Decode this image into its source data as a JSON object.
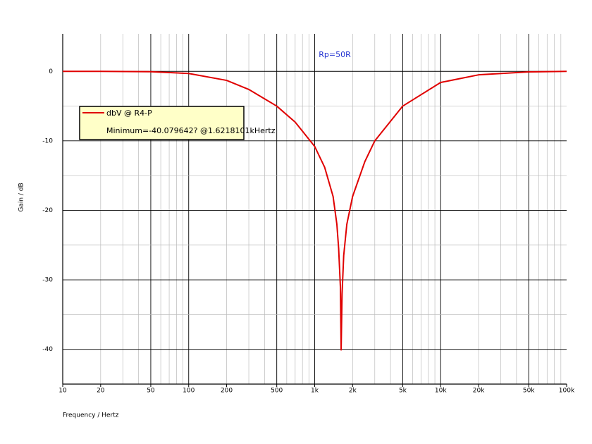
{
  "chart_data": {
    "type": "line",
    "y_label": "Gain / dB",
    "x_label": "Frequency / Hertz",
    "annotation": "Rp=50R",
    "legend_note": "Minimum=-40.079642? @1.6218101kHertz",
    "x": [
      10,
      20,
      50,
      100,
      200,
      300,
      500,
      700,
      1000,
      1200,
      1400,
      1500,
      1550,
      1600,
      1621.8101,
      1650,
      1700,
      1800,
      2000,
      2500,
      3000,
      5000,
      10000,
      20000,
      50000,
      100000
    ],
    "series": [
      {
        "name": "dbV @ R4-P",
        "color": "#e00000",
        "values": [
          0,
          0,
          -0.05,
          -0.3,
          -1.3,
          -2.6,
          -5,
          -7.3,
          -10.8,
          -13.8,
          -18,
          -22,
          -25.5,
          -31,
          -40.079642,
          -32,
          -26.5,
          -22,
          -18,
          -13,
          -10,
          -5,
          -1.6,
          -0.5,
          -0.08,
          0
        ]
      }
    ],
    "xscale": "log",
    "xlim": [
      10,
      100000
    ],
    "xticks": [
      10,
      20,
      50,
      100,
      200,
      500,
      {
        "value": 1000,
        "label": "1k"
      },
      {
        "value": 2000,
        "label": "2k"
      },
      {
        "value": 5000,
        "label": "5k"
      },
      {
        "value": 10000,
        "label": "10k"
      },
      {
        "value": 20000,
        "label": "20k"
      },
      {
        "value": 50000,
        "label": "50k"
      },
      {
        "value": 100000,
        "label": "100k"
      }
    ],
    "ylim": [
      -45,
      5.4
    ],
    "yticks": [
      0,
      -10,
      -20,
      -30,
      -40
    ],
    "grid": true
  }
}
